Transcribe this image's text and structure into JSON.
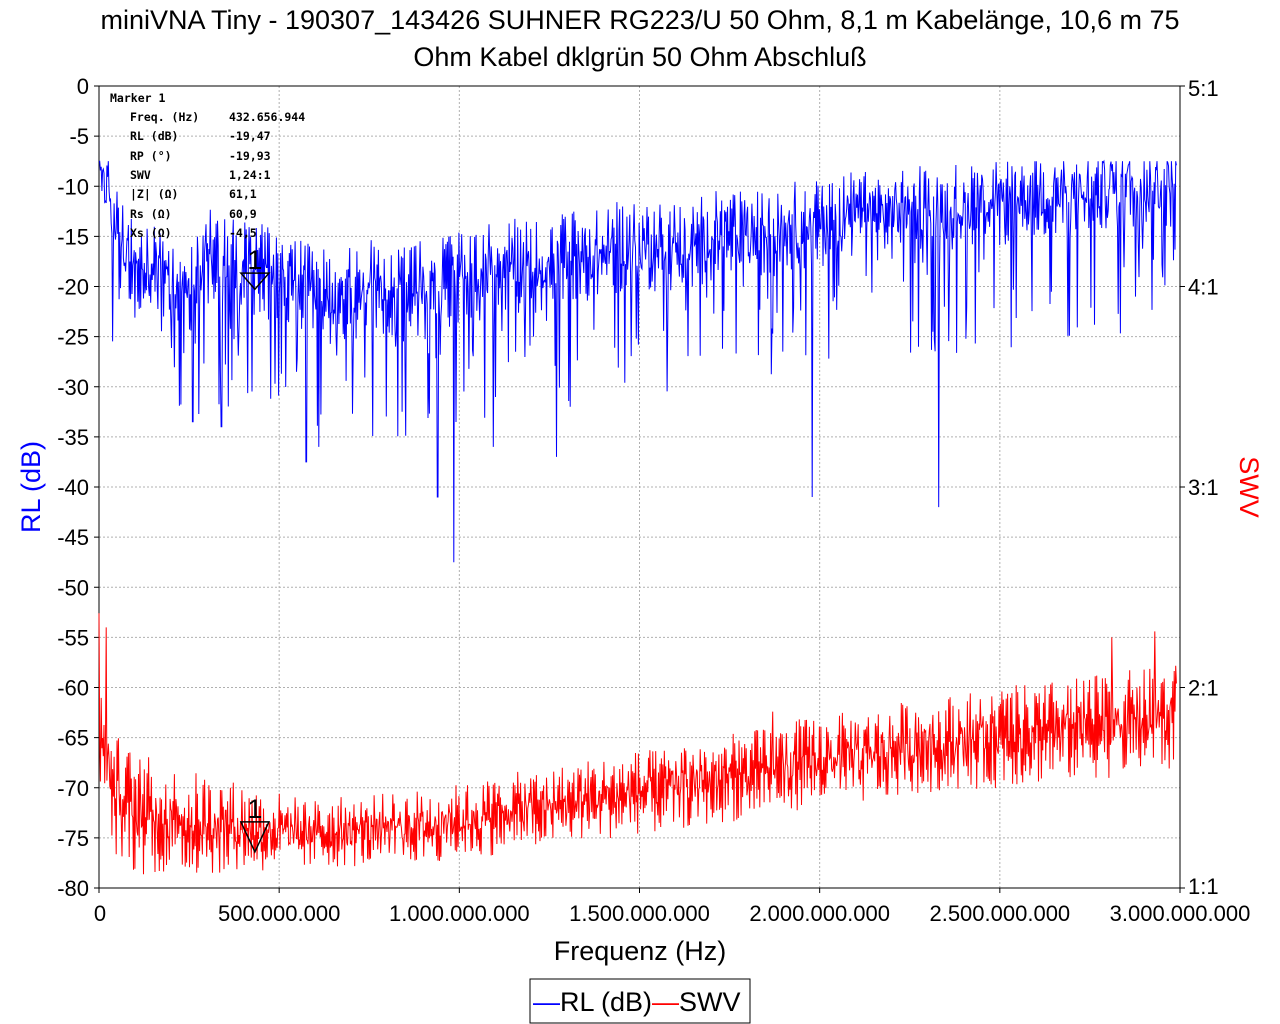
{
  "title_line1": "miniVNA Tiny - 190307_143426 SUHNER RG223/U 50 Ohm, 8,1 m Kabelänge,  10,6 m 75",
  "title_line2": "Ohm Kabel dklgrün 50 Ohm Abschluß",
  "marker_box": {
    "header": "Marker 1",
    "rows": [
      {
        "label": "Freq. (Hz)",
        "value": "432.656.944"
      },
      {
        "label": "RL (dB)",
        "value": "-19,47"
      },
      {
        "label": "RP (°)",
        "value": "-19,93"
      },
      {
        "label": "SWV",
        "value": "1,24:1"
      },
      {
        "label": "|Z| (Ω)",
        "value": "61,1"
      },
      {
        "label": "Rs (Ω)",
        "value": "60,9"
      },
      {
        "label": "Xs (Ω)",
        "value": "-4,5"
      }
    ]
  },
  "marker_label": "1",
  "legend": [
    {
      "symbol": "—",
      "label": "RL (dB)",
      "color": "#0000ff"
    },
    {
      "symbol": "—",
      "label": "SWV",
      "color": "#ff0000"
    }
  ],
  "chart_data": {
    "type": "line",
    "xlabel": "Frequenz (Hz)",
    "ylabel": "RL (dB)",
    "y2label": "SWV",
    "xlim": [
      0,
      3000000000
    ],
    "ylim": [
      -80,
      0
    ],
    "y2lim": [
      1,
      5
    ],
    "x_ticks": [
      "0",
      "500.000.000",
      "1.000.000.000",
      "1.500.000.000",
      "2.000.000.000",
      "2.500.000.000",
      "3.000.000.000"
    ],
    "y_ticks": [
      "0",
      "-5",
      "-10",
      "-15",
      "-20",
      "-25",
      "-30",
      "-35",
      "-40",
      "-45",
      "-50",
      "-55",
      "-60",
      "-65",
      "-70",
      "-75",
      "-80"
    ],
    "y2_ticks": [
      {
        "value": 5,
        "label": "5:1"
      },
      {
        "value": 4,
        "label": "4:1"
      },
      {
        "value": 3,
        "label": "3:1"
      },
      {
        "value": 2,
        "label": "2:1"
      },
      {
        "value": 1,
        "label": "1:1"
      }
    ],
    "grid": true,
    "legend_position": "bottom-center",
    "marker": {
      "x": 432656944,
      "rl": -19.47,
      "swv": 1.24
    },
    "series": [
      {
        "name": "RL (dB)",
        "axis": "left",
        "color": "#0000ff",
        "x_start": 0,
        "x_step": 50000000,
        "values": [
          -8,
          -16,
          -20,
          -19,
          -21,
          -22,
          -18,
          -18,
          -19,
          -19,
          -21,
          -21,
          -22,
          -22,
          -22,
          -21,
          -21,
          -22,
          -21,
          -21,
          -20,
          -20,
          -19,
          -19,
          -19,
          -19,
          -18,
          -18,
          -18,
          -17,
          -17,
          -17,
          -17,
          -17,
          -16,
          -16,
          -16,
          -16,
          -15,
          -15,
          -15,
          -14,
          -14,
          -14,
          -14,
          -13,
          -13,
          -13,
          -13,
          -12,
          -13,
          -12,
          -12,
          -12,
          -12,
          -12,
          -11,
          -11,
          -11,
          -11,
          -11
        ],
        "dips": [
          [
            260000000,
            -33.5
          ],
          [
            340000000,
            -34
          ],
          [
            575000000,
            -37.5
          ],
          [
            610000000,
            -36
          ],
          [
            940000000,
            -41
          ],
          [
            985000000,
            -47.5
          ],
          [
            1095000000,
            -36
          ],
          [
            1270000000,
            -37
          ],
          [
            1980000000,
            -41
          ],
          [
            2330000000,
            -42
          ]
        ]
      },
      {
        "name": "SWV",
        "axis": "right",
        "color": "#ff0000",
        "x_start": 0,
        "x_step": 50000000,
        "values": [
          1.7,
          1.45,
          1.37,
          1.36,
          1.33,
          1.32,
          1.32,
          1.31,
          1.3,
          1.29,
          1.28,
          1.27,
          1.27,
          1.28,
          1.28,
          1.29,
          1.29,
          1.3,
          1.31,
          1.32,
          1.33,
          1.34,
          1.36,
          1.38,
          1.39,
          1.4,
          1.42,
          1.44,
          1.45,
          1.46,
          1.48,
          1.48,
          1.5,
          1.52,
          1.53,
          1.55,
          1.56,
          1.58,
          1.6,
          1.62,
          1.63,
          1.64,
          1.65,
          1.66,
          1.68,
          1.7,
          1.71,
          1.72,
          1.73,
          1.74,
          1.75,
          1.76,
          1.77,
          1.78,
          1.79,
          1.8,
          1.81,
          1.82,
          1.83,
          1.84,
          1.85
        ],
        "peaks": [
          [
            0,
            2.37
          ],
          [
            20000000,
            2.3
          ],
          [
            1640000000,
            1.63
          ],
          [
            1870000000,
            1.88
          ],
          [
            2450000000,
            1.8
          ],
          [
            2630000000,
            1.82
          ],
          [
            2810000000,
            2.25
          ],
          [
            2880000000,
            2.0
          ],
          [
            2930000000,
            2.28
          ],
          [
            2990000000,
            2.02
          ]
        ]
      }
    ]
  }
}
